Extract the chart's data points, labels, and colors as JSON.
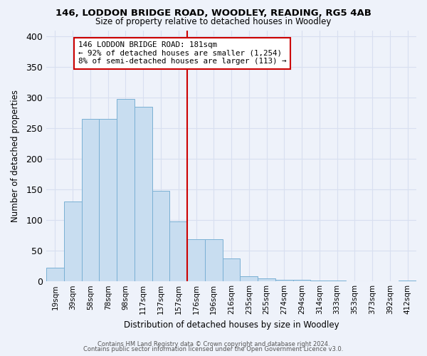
{
  "title": "146, LODDON BRIDGE ROAD, WOODLEY, READING, RG5 4AB",
  "subtitle": "Size of property relative to detached houses in Woodley",
  "xlabel": "Distribution of detached houses by size in Woodley",
  "ylabel": "Number of detached properties",
  "bar_labels": [
    "19sqm",
    "39sqm",
    "58sqm",
    "78sqm",
    "98sqm",
    "117sqm",
    "137sqm",
    "157sqm",
    "176sqm",
    "196sqm",
    "216sqm",
    "235sqm",
    "255sqm",
    "274sqm",
    "294sqm",
    "314sqm",
    "333sqm",
    "353sqm",
    "373sqm",
    "392sqm",
    "412sqm"
  ],
  "bar_heights": [
    22,
    130,
    265,
    265,
    298,
    285,
    148,
    98,
    68,
    68,
    37,
    8,
    5,
    2,
    2,
    1,
    1,
    0,
    0,
    0,
    1
  ],
  "bar_color": "#c8ddf0",
  "bar_edge_color": "#7ab0d4",
  "vline_position": 7.5,
  "vline_color": "#cc0000",
  "ylim": [
    0,
    410
  ],
  "yticks": [
    0,
    50,
    100,
    150,
    200,
    250,
    300,
    350,
    400
  ],
  "annotation_title": "146 LODDON BRIDGE ROAD: 181sqm",
  "annotation_line1": "← 92% of detached houses are smaller (1,254)",
  "annotation_line2": "8% of semi-detached houses are larger (113) →",
  "annotation_box_color": "#ffffff",
  "annotation_box_edge": "#cc0000",
  "footer1": "Contains HM Land Registry data © Crown copyright and database right 2024.",
  "footer2": "Contains public sector information licensed under the Open Government Licence v3.0.",
  "bg_color": "#eef2fa",
  "grid_color": "#d8dff0"
}
